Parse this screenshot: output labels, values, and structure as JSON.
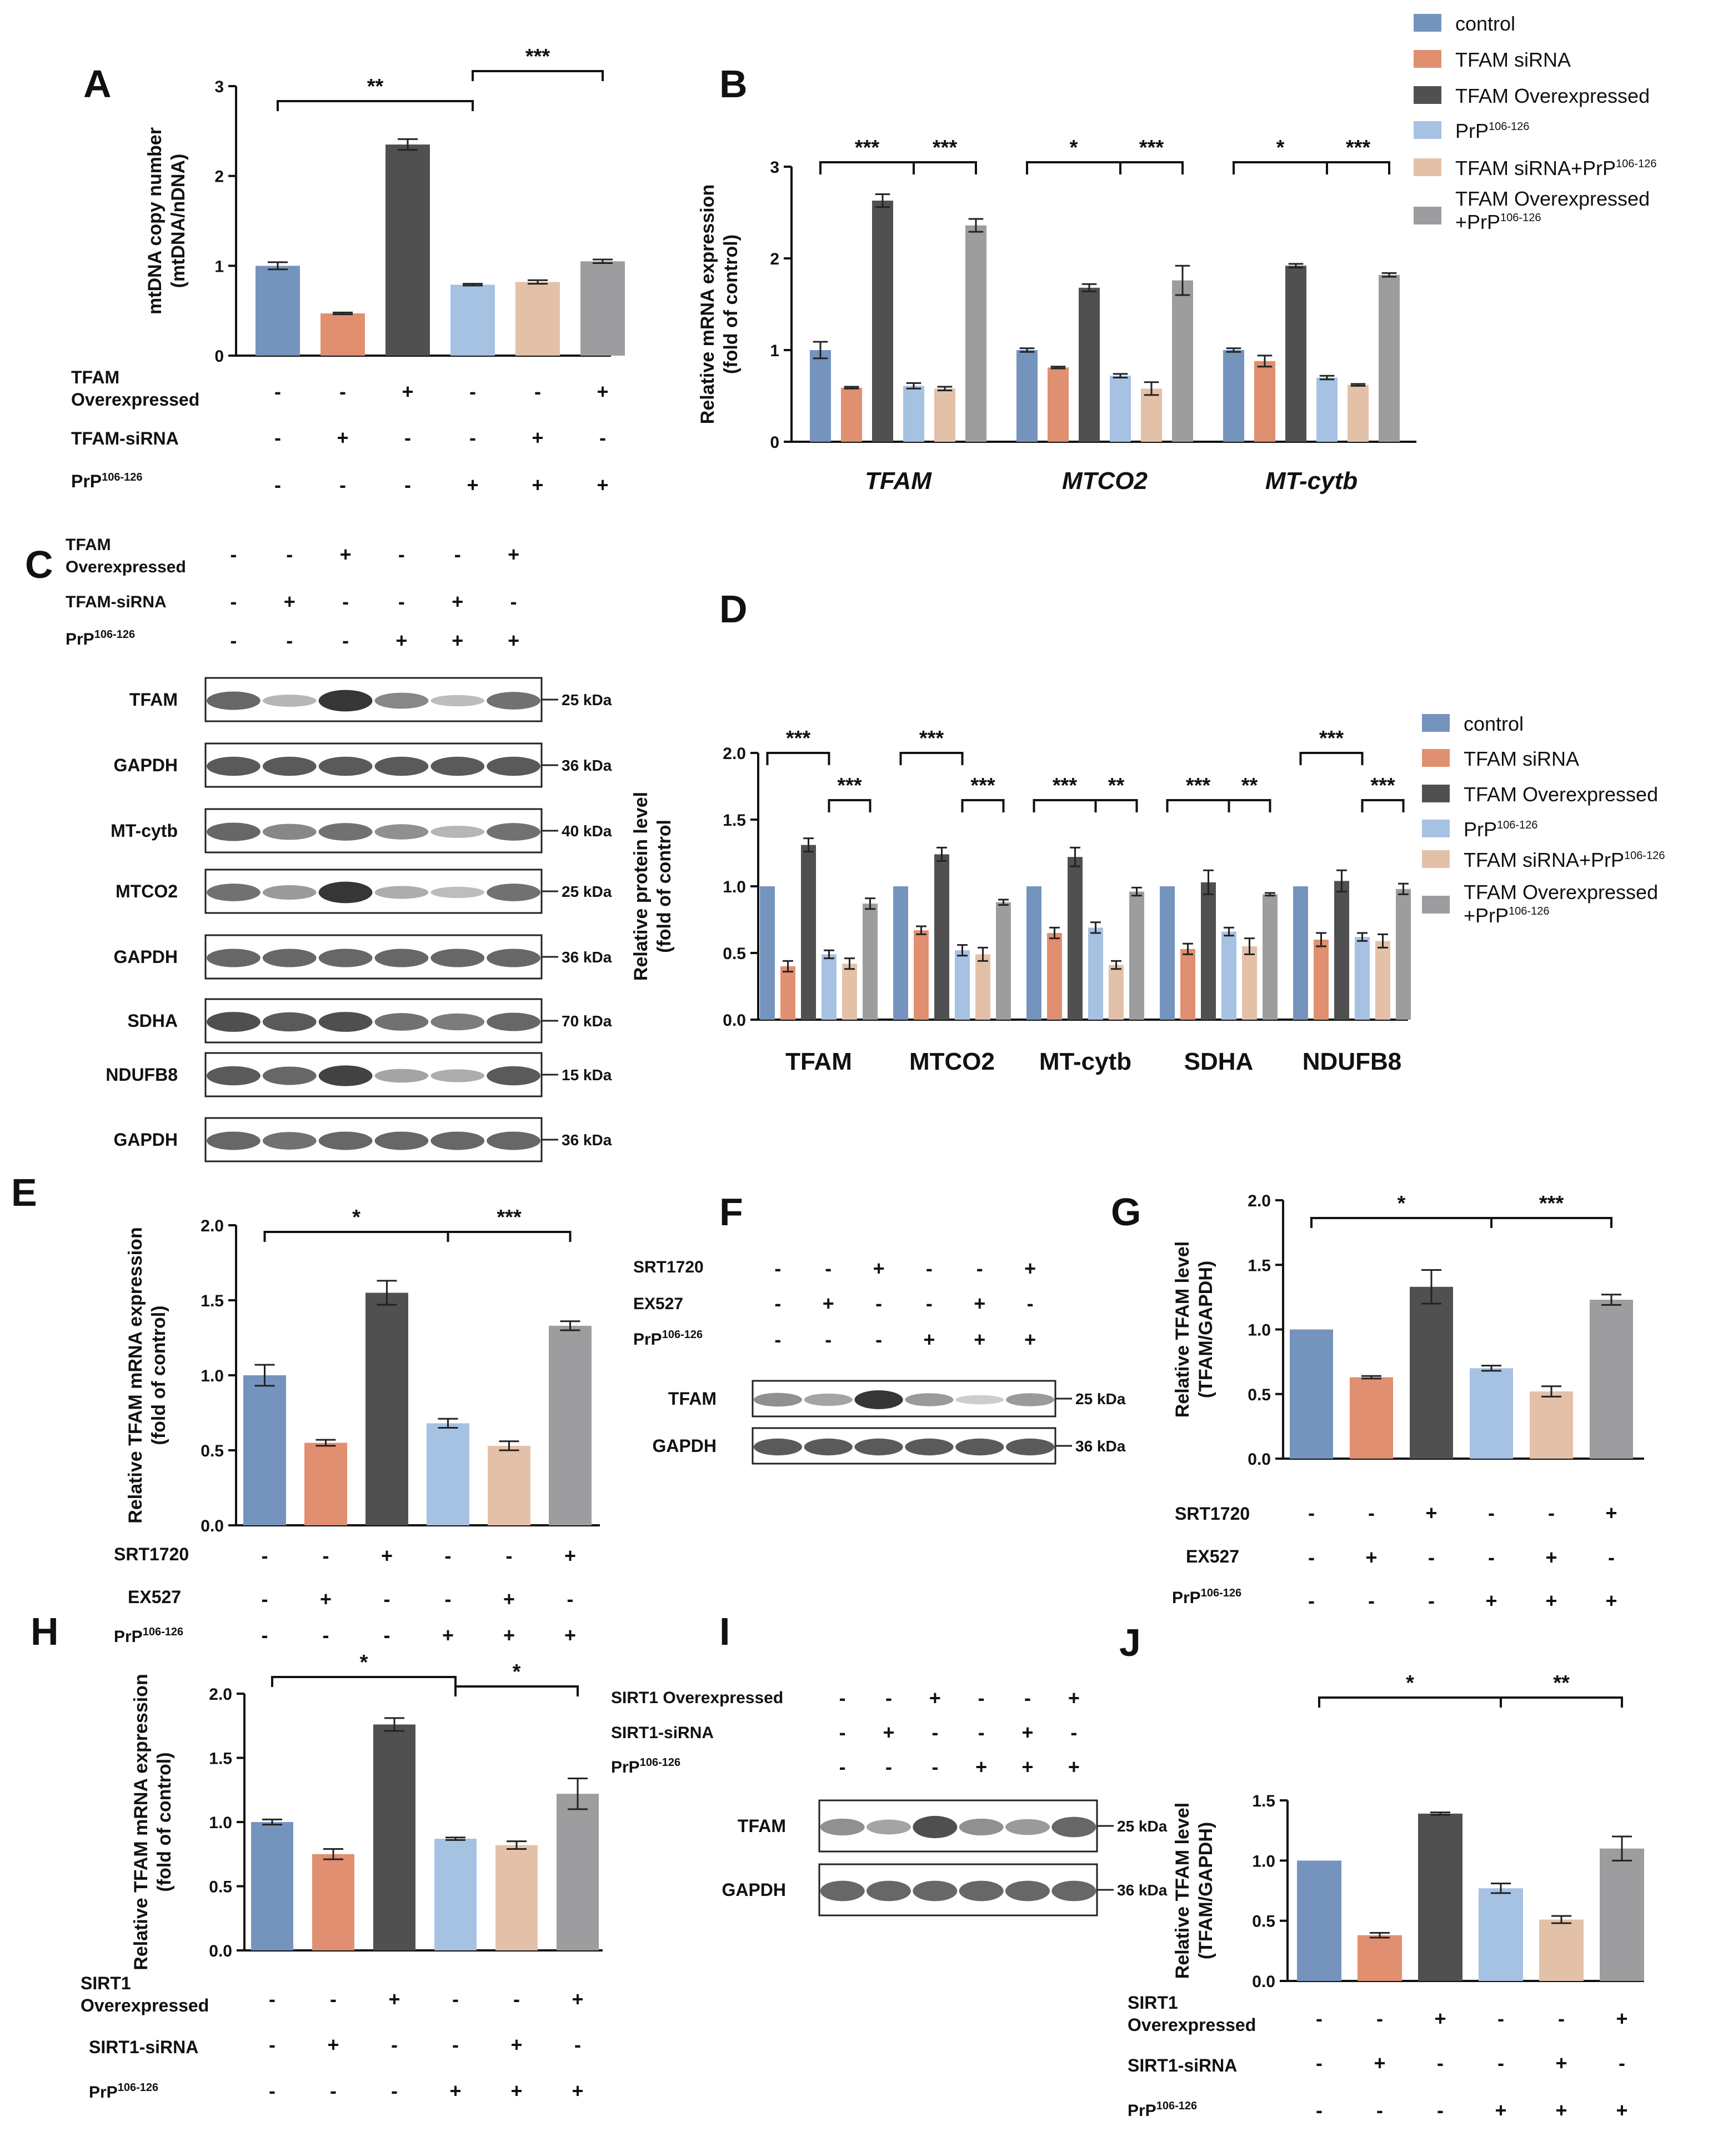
{
  "colors": {
    "control": "#7594bd",
    "tfam_sirna": "#e08f70",
    "tfam_over": "#505050",
    "prp": "#a6c2e2",
    "sirna_prp": "#e3c1a8",
    "over_prp": "#9d9d9f"
  },
  "legend": {
    "control": "control",
    "tfam_sirna": "TFAM siRNA",
    "tfam_over": "TFAM Overexpressed",
    "prp_base": "PrP",
    "prp_sup": "106-126",
    "sirna_prp_base": "TFAM siRNA+PrP",
    "sirna_prp_sup": "106-126",
    "over_prp_line1": "TFAM Overexpressed",
    "over_prp_line2_base": "+PrP",
    "over_prp_line2_sup": "106-126"
  },
  "conditions": {
    "tfam_over": "TFAM",
    "tfam_over_line2": "Overexpressed",
    "tfam_sirna": "TFAM-siRNA",
    "prp_base": "PrP",
    "prp_sup": "106-126",
    "srt1720": "SRT1720",
    "ex527": "EX527",
    "sirt1_over": "SIRT1",
    "sirt1_over_line2": "Overexpressed",
    "sirt1_over_single": "SIRT1 Overexpressed",
    "sirt1_sirna": "SIRT1-siRNA"
  },
  "signs": {
    "plus": "+",
    "minus": "-",
    "tfam_over": [
      "-",
      "-",
      "+",
      "-",
      "-",
      "+"
    ],
    "tfam_sirna": [
      "-",
      "+",
      "-",
      "-",
      "+",
      "-"
    ],
    "prp": [
      "-",
      "-",
      "-",
      "+",
      "+",
      "+"
    ]
  },
  "chart_data": [
    {
      "panel": "A",
      "type": "bar",
      "ylabel_line1": "mtDNA copy number",
      "ylabel_line2": "(mtDNA/nDNA)",
      "ylim": [
        0,
        3
      ],
      "yticks": [
        "0",
        "1",
        "2",
        "3"
      ],
      "values": [
        1.0,
        0.47,
        2.35,
        0.79,
        0.82,
        1.05
      ],
      "errors": [
        0.04,
        0.01,
        0.06,
        0.01,
        0.02,
        0.02
      ],
      "sig": [
        {
          "from": 0,
          "to": 3,
          "label": "**"
        },
        {
          "from": 3,
          "to": 5,
          "label": "***"
        }
      ]
    },
    {
      "panel": "B",
      "type": "bar",
      "ylabel_line1": "Relative  mRNA expression",
      "ylabel_line2": "(fold of control)",
      "ylim": [
        0,
        3
      ],
      "yticks": [
        "0",
        "1",
        "2",
        "3"
      ],
      "categories": [
        "TFAM",
        "MTCO2",
        "MT-cytb"
      ],
      "series": [
        {
          "name": "control",
          "values": [
            1.0,
            1.0,
            1.0
          ],
          "errors": [
            0.09,
            0.02,
            0.02
          ]
        },
        {
          "name": "TFAM siRNA",
          "values": [
            0.59,
            0.81,
            0.88
          ],
          "errors": [
            0.01,
            0.01,
            0.06
          ]
        },
        {
          "name": "TFAM Overexpressed",
          "values": [
            2.63,
            1.68,
            1.92
          ],
          "errors": [
            0.07,
            0.04,
            0.02
          ]
        },
        {
          "name": "PrP106-126",
          "values": [
            0.61,
            0.72,
            0.7
          ],
          "errors": [
            0.03,
            0.02,
            0.02
          ]
        },
        {
          "name": "TFAM siRNA+PrP106-126",
          "values": [
            0.58,
            0.58,
            0.62
          ],
          "errors": [
            0.02,
            0.07,
            0.01
          ]
        },
        {
          "name": "TFAM Overexpressed+PrP106-126",
          "values": [
            2.36,
            1.76,
            1.82
          ],
          "errors": [
            0.07,
            0.16,
            0.02
          ]
        }
      ],
      "sig": [
        [
          {
            "from": 0,
            "to": 3,
            "label": "***"
          },
          {
            "from": 3,
            "to": 5,
            "label": "***"
          }
        ],
        [
          {
            "from": 0,
            "to": 3,
            "label": "*"
          },
          {
            "from": 3,
            "to": 5,
            "label": "***"
          }
        ],
        [
          {
            "from": 0,
            "to": 3,
            "label": "*"
          },
          {
            "from": 3,
            "to": 5,
            "label": "***"
          }
        ]
      ]
    },
    {
      "panel": "D",
      "type": "bar",
      "ylabel_line1": "Relative protein level",
      "ylabel_line2": "(fold of control",
      "ylim": [
        0,
        2
      ],
      "yticks": [
        "0.0",
        "0.5",
        "1.0",
        "1.5",
        "2.0"
      ],
      "categories": [
        "TFAM",
        "MTCO2",
        "MT-cytb",
        "SDHA",
        "NDUFB8"
      ],
      "series": [
        {
          "name": "control",
          "values": [
            1.0,
            1.0,
            1.0,
            1.0,
            1.0
          ],
          "errors": [
            0,
            0,
            0,
            0,
            0
          ]
        },
        {
          "name": "TFAM siRNA",
          "values": [
            0.4,
            0.67,
            0.65,
            0.53,
            0.6
          ],
          "errors": [
            0.04,
            0.03,
            0.04,
            0.04,
            0.05
          ]
        },
        {
          "name": "TFAM Overexpressed",
          "values": [
            1.31,
            1.24,
            1.22,
            1.03,
            1.04
          ],
          "errors": [
            0.05,
            0.05,
            0.07,
            0.09,
            0.08
          ]
        },
        {
          "name": "PrP106-126",
          "values": [
            0.49,
            0.52,
            0.69,
            0.66,
            0.62
          ],
          "errors": [
            0.03,
            0.04,
            0.04,
            0.03,
            0.03
          ]
        },
        {
          "name": "TFAM siRNA+PrP106-126",
          "values": [
            0.42,
            0.49,
            0.41,
            0.55,
            0.59
          ],
          "errors": [
            0.04,
            0.05,
            0.03,
            0.06,
            0.05
          ]
        },
        {
          "name": "TFAM Overexpressed+PrP106-126",
          "values": [
            0.87,
            0.88,
            0.96,
            0.94,
            0.98
          ],
          "errors": [
            0.04,
            0.02,
            0.03,
            0.01,
            0.04
          ]
        }
      ],
      "sig": [
        [
          {
            "from": 0,
            "to": 3,
            "label": "***",
            "level": 1
          },
          {
            "from": 3,
            "to": 5,
            "label": "***",
            "level": 0
          }
        ],
        [
          {
            "from": 0,
            "to": 3,
            "label": "***",
            "level": 1
          },
          {
            "from": 3,
            "to": 5,
            "label": "***",
            "level": 0
          }
        ],
        [
          {
            "from": 0,
            "to": 3,
            "label": "***",
            "level": 0
          },
          {
            "from": 3,
            "to": 5,
            "label": "**",
            "level": 0
          }
        ],
        [
          {
            "from": 0,
            "to": 3,
            "label": "***",
            "level": 0
          },
          {
            "from": 3,
            "to": 5,
            "label": "**",
            "level": 0
          }
        ],
        [
          {
            "from": 0,
            "to": 3,
            "label": "***",
            "level": 1
          },
          {
            "from": 3,
            "to": 5,
            "label": "***",
            "level": 0
          }
        ]
      ]
    },
    {
      "panel": "E",
      "type": "bar",
      "ylabel_line1": "Relative TFAM mRNA expression",
      "ylabel_line2": "(fold of control)",
      "ylim": [
        0,
        2
      ],
      "yticks": [
        "0.0",
        "0.5",
        "1.0",
        "1.5",
        "2.0"
      ],
      "values": [
        1.0,
        0.55,
        1.55,
        0.68,
        0.53,
        1.33
      ],
      "errors": [
        0.07,
        0.02,
        0.08,
        0.03,
        0.03,
        0.03
      ],
      "sig": [
        {
          "from": 0,
          "to": 3,
          "label": "*"
        },
        {
          "from": 3,
          "to": 5,
          "label": "***"
        }
      ]
    },
    {
      "panel": "G",
      "type": "bar",
      "ylabel_line1": "Relative TFAM  level",
      "ylabel_line2": "(TFAM/GAPDH)",
      "ylim": [
        0,
        2
      ],
      "yticks": [
        "0.0",
        "0.5",
        "1.0",
        "1.5",
        "2.0"
      ],
      "values": [
        1.0,
        0.63,
        1.33,
        0.7,
        0.52,
        1.23
      ],
      "errors": [
        0,
        0.01,
        0.13,
        0.02,
        0.04,
        0.04
      ],
      "sig": [
        {
          "from": 0,
          "to": 3,
          "label": "*"
        },
        {
          "from": 3,
          "to": 5,
          "label": "***"
        }
      ]
    },
    {
      "panel": "H",
      "type": "bar",
      "ylabel_line1": "Relative TFAM mRNA expression",
      "ylabel_line2": "(fold of control)",
      "ylim": [
        0,
        2
      ],
      "yticks": [
        "0.0",
        "0.5",
        "1.0",
        "1.5",
        "2.0"
      ],
      "values": [
        1.0,
        0.75,
        1.76,
        0.87,
        0.82,
        1.22
      ],
      "errors": [
        0.02,
        0.04,
        0.05,
        0.01,
        0.03,
        0.12
      ],
      "sig": [
        {
          "from": 0,
          "to": 3,
          "label": "*"
        },
        {
          "from": 3,
          "to": 5,
          "label": "*"
        }
      ]
    },
    {
      "panel": "J",
      "type": "bar",
      "ylabel_line1": "Relative TFAM  level",
      "ylabel_line2": "(TFAM/GAPDH)",
      "ylim": [
        0,
        1.5
      ],
      "yticks": [
        "0.0",
        "0.5",
        "1.0",
        "1.5"
      ],
      "values": [
        1.0,
        0.38,
        1.39,
        0.77,
        0.51,
        1.1
      ],
      "errors": [
        0,
        0.02,
        0.01,
        0.04,
        0.03,
        0.1
      ],
      "sig": [
        {
          "from": 0,
          "to": 3,
          "label": "*"
        },
        {
          "from": 3,
          "to": 5,
          "label": "**"
        }
      ]
    }
  ],
  "blots": {
    "C": [
      {
        "label": "TFAM",
        "kda": "25 kDa",
        "intensity": [
          0.75,
          0.35,
          0.95,
          0.6,
          0.3,
          0.7
        ]
      },
      {
        "label": "GAPDH",
        "kda": "36 kDa",
        "intensity": [
          0.8,
          0.8,
          0.8,
          0.8,
          0.8,
          0.8
        ]
      },
      {
        "label": "MT-cytb",
        "kda": "40 kDa",
        "intensity": [
          0.75,
          0.6,
          0.7,
          0.55,
          0.35,
          0.7
        ]
      },
      {
        "label": "MTCO2",
        "kda": "25 kDa",
        "intensity": [
          0.7,
          0.5,
          0.95,
          0.4,
          0.3,
          0.7
        ]
      },
      {
        "label": "GAPDH",
        "kda": "36 kDa",
        "intensity": [
          0.75,
          0.75,
          0.75,
          0.75,
          0.75,
          0.75
        ]
      },
      {
        "label": "SDHA",
        "kda": "70 kDa",
        "intensity": [
          0.85,
          0.8,
          0.85,
          0.7,
          0.65,
          0.75
        ]
      },
      {
        "label": "NDUFB8",
        "kda": "15 kDa",
        "intensity": [
          0.8,
          0.75,
          0.9,
          0.45,
          0.4,
          0.8
        ]
      },
      {
        "label": "GAPDH",
        "kda": "36 kDa",
        "intensity": [
          0.75,
          0.7,
          0.75,
          0.75,
          0.75,
          0.75
        ]
      }
    ],
    "F": [
      {
        "label": "TFAM",
        "kda": "25 kDa",
        "intensity": [
          0.55,
          0.45,
          0.95,
          0.5,
          0.2,
          0.5
        ]
      },
      {
        "label": "GAPDH",
        "kda": "36 kDa",
        "intensity": [
          0.8,
          0.8,
          0.8,
          0.8,
          0.8,
          0.8
        ]
      }
    ],
    "I": [
      {
        "label": "TFAM",
        "kda": "25 kDa",
        "intensity": [
          0.55,
          0.45,
          0.85,
          0.55,
          0.5,
          0.75
        ]
      },
      {
        "label": "GAPDH",
        "kda": "36 kDa",
        "intensity": [
          0.75,
          0.75,
          0.75,
          0.75,
          0.75,
          0.75
        ]
      }
    ]
  },
  "panels": {
    "A": "A",
    "B": "B",
    "C": "C",
    "D": "D",
    "E": "E",
    "F": "F",
    "G": "G",
    "H": "H",
    "I": "I",
    "J": "J"
  }
}
